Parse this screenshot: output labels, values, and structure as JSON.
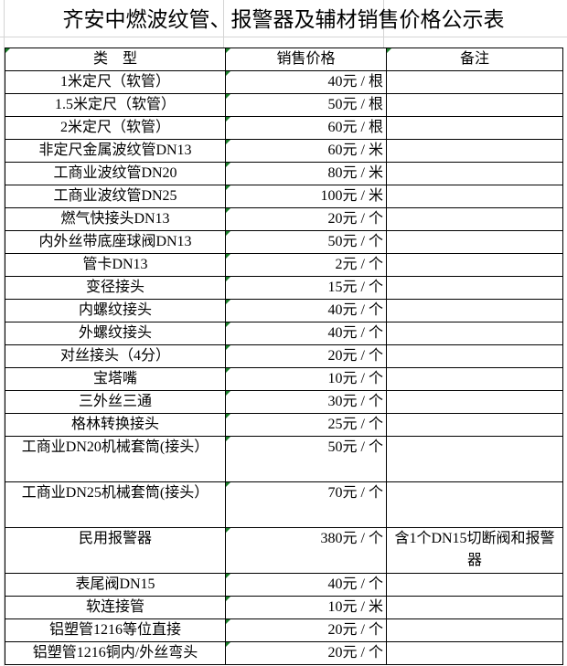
{
  "title": "齐安中燃波纹管、报警器及辅材销售价格公示表",
  "headers": [
    "类　型",
    "销售价格",
    "备注"
  ],
  "rows": [
    {
      "type": "1米定尺（软管）",
      "price": "40元 / 根",
      "note": ""
    },
    {
      "type": "1.5米定尺（软管）",
      "price": "50元 / 根",
      "note": ""
    },
    {
      "type": "2米定尺（软管）",
      "price": "60元 / 根",
      "note": ""
    },
    {
      "type": "非定尺金属波纹管DN13",
      "price": "60元 / 米",
      "note": ""
    },
    {
      "type": "工商业波纹管DN20",
      "price": "80元 / 米",
      "note": ""
    },
    {
      "type": "工商业波纹管DN25",
      "price": "100元 / 米",
      "note": ""
    },
    {
      "type": "燃气快接头DN13",
      "price": "20元 / 个",
      "note": ""
    },
    {
      "type": "内外丝带底座球阀DN13",
      "price": "50元 / 个",
      "note": ""
    },
    {
      "type": "管卡DN13",
      "price": "2元 / 个",
      "note": ""
    },
    {
      "type": "变径接头",
      "price": "15元 / 个",
      "note": ""
    },
    {
      "type": "内螺纹接头",
      "price": "40元 / 个",
      "note": ""
    },
    {
      "type": "外螺纹接头",
      "price": "40元 / 个",
      "note": ""
    },
    {
      "type": "对丝接头（4分）",
      "price": "20元 / 个",
      "note": ""
    },
    {
      "type": "宝塔嘴",
      "price": "10元 / 个",
      "note": ""
    },
    {
      "type": "三外丝三通",
      "price": "30元 / 个",
      "note": ""
    },
    {
      "type": "格林转换接头",
      "price": "25元 / 个",
      "note": ""
    },
    {
      "type": "工商业DN20机械套筒(接头）",
      "price": "50元 / 个",
      "note": ""
    },
    {
      "type": "工商业DN25机械套筒(接头）",
      "price": "70元 / 个",
      "note": ""
    },
    {
      "type": "民用报警器",
      "price": "380元 / 个",
      "note": "含1个DN15切断阀和报警器"
    },
    {
      "type": "表尾阀DN15",
      "price": "40元 / 个",
      "note": ""
    },
    {
      "type": "软连接管",
      "price": "10元 / 米",
      "note": ""
    },
    {
      "type": "铝塑管1216等位直接",
      "price": "20元 / 个",
      "note": ""
    },
    {
      "type": "铝塑管1216铜内/外丝弯头",
      "price": "20元 / 个",
      "note": ""
    }
  ]
}
